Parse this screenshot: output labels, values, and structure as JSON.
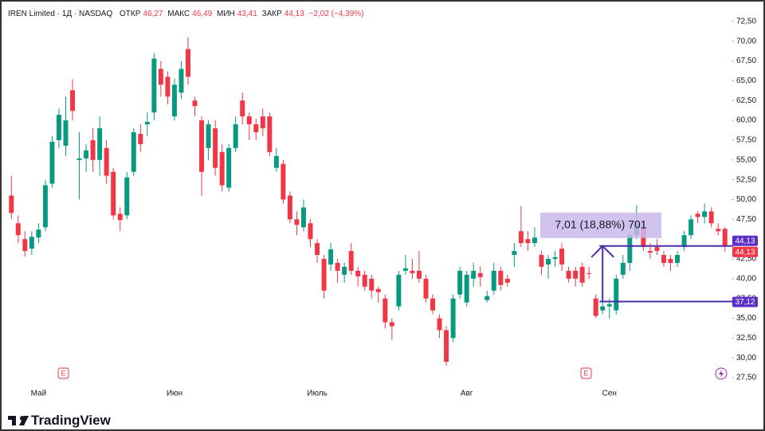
{
  "chart_data": {
    "type": "candlestick",
    "title": "IREN Limited · 1Д · NASDAQ",
    "header_stats": [
      {
        "label": "ОТКР",
        "value": "46,27"
      },
      {
        "label": "МАКС",
        "value": "46,49"
      },
      {
        "label": "МИН",
        "value": "43,41"
      },
      {
        "label": "ЗАКР",
        "value": "44,13"
      }
    ],
    "change": "−2,02 (−4,39%)",
    "up_color": "#089981",
    "down_color": "#f23645",
    "categories": [
      null,
      null,
      null,
      null,
      "Май",
      null,
      null,
      null,
      null,
      null,
      null,
      null,
      null,
      null,
      null,
      null,
      null,
      null,
      null,
      null,
      null,
      null,
      null,
      null,
      "Июн",
      null,
      null,
      null,
      null,
      null,
      null,
      null,
      null,
      null,
      null,
      null,
      null,
      null,
      null,
      null,
      null,
      null,
      null,
      null,
      null,
      "Июль",
      null,
      null,
      null,
      null,
      null,
      null,
      null,
      null,
      null,
      null,
      null,
      null,
      null,
      null,
      null,
      null,
      null,
      null,
      null,
      null,
      null,
      "Авг",
      null,
      null,
      null,
      null,
      null,
      null,
      null,
      null,
      null,
      null,
      null,
      null,
      null,
      null,
      null,
      null,
      null,
      null,
      null,
      null,
      "Сен",
      null,
      null,
      null,
      null,
      null,
      null,
      null,
      null,
      null,
      null,
      null,
      null,
      null,
      null,
      null,
      null,
      null
    ],
    "open": [
      50.5,
      47,
      45,
      43.8,
      45.2,
      46.5,
      52,
      57.5,
      56.8,
      63.8,
      55,
      55.2,
      57.5,
      55,
      56.5,
      53.5,
      48.2,
      48,
      53.5,
      58.3,
      59.5,
      61,
      66.5,
      65.5,
      60.5,
      63.5,
      69,
      62.5,
      60,
      56.5,
      59,
      56,
      51.5,
      56.5,
      62.5,
      60.5,
      59.5,
      60.5,
      60.5,
      54,
      54.5,
      50.5,
      47.5,
      46.5,
      47,
      44.5,
      42.5,
      41.8,
      42,
      40.5,
      43.5,
      41,
      40.5,
      40,
      38.7,
      37.5,
      34.5,
      36.5,
      41,
      41,
      41,
      40,
      37.5,
      35,
      33.5,
      32.5,
      38,
      37,
      40,
      40.7,
      37.3,
      38.5,
      41,
      40,
      43,
      46,
      45,
      44.5,
      43,
      41.8,
      42.5,
      43.8,
      41,
      41,
      41.5,
      40.7,
      37.5,
      36,
      36.5,
      36,
      40.5,
      42,
      45.5,
      46.5,
      43.5,
      44,
      43,
      42.5,
      42,
      44,
      45.5,
      48.2,
      47.8,
      48.5,
      46.3,
      46.3
    ],
    "high": [
      53,
      48,
      46,
      46,
      47,
      52.5,
      58,
      61.5,
      63,
      65.2,
      58.5,
      57,
      59,
      60.5,
      57.5,
      54,
      49,
      53.5,
      59,
      59.5,
      61,
      68.5,
      67.5,
      66.2,
      65.3,
      67.5,
      70.5,
      63,
      60.5,
      60,
      60,
      57,
      57,
      60.5,
      63.5,
      61,
      60.2,
      61.5,
      61,
      56.5,
      55,
      51,
      48.5,
      50,
      47.5,
      45,
      43,
      44.5,
      42.5,
      42,
      44.5,
      41.5,
      41,
      40.5,
      39,
      38,
      35,
      41,
      43,
      42.5,
      43.5,
      40.5,
      38,
      35.5,
      34,
      38,
      41.5,
      41,
      42,
      41.5,
      38.5,
      42,
      41.5,
      40.5,
      44.5,
      49.2,
      46,
      46.5,
      43.5,
      43,
      43.5,
      44.5,
      41.5,
      41.5,
      42,
      41.5,
      38,
      37,
      37.5,
      40.5,
      43,
      46,
      49.3,
      47,
      44.5,
      45,
      43.5,
      43,
      43.5,
      46,
      48,
      48.5,
      49.5,
      49,
      47,
      46.5
    ],
    "low": [
      47.5,
      44.5,
      42.8,
      43,
      44.5,
      46,
      51.5,
      56.5,
      55.5,
      60,
      50,
      53.5,
      53.5,
      53,
      52,
      47.5,
      46,
      47.5,
      53,
      56,
      58,
      60,
      63,
      62,
      60,
      62.7,
      64.5,
      60.5,
      50.5,
      55,
      53,
      51,
      51,
      56,
      59.5,
      57.5,
      57.5,
      58,
      55.5,
      53.5,
      49.5,
      47,
      45.5,
      46,
      44,
      42,
      37.5,
      41,
      39.5,
      39.5,
      40.5,
      39,
      38.5,
      37.5,
      37,
      33.7,
      32.3,
      36,
      40.5,
      40,
      39.5,
      37,
      35.5,
      32.5,
      29,
      32,
      37.5,
      36.5,
      39,
      39,
      37,
      38,
      38.5,
      39,
      41.5,
      44,
      43.5,
      44,
      40.5,
      40,
      41.5,
      41,
      39.5,
      39,
      39,
      40,
      35,
      35.5,
      35,
      35.5,
      40,
      41,
      45,
      43.5,
      42.5,
      43,
      41.5,
      41,
      41.5,
      43.5,
      45,
      47,
      47,
      46.5,
      45.5,
      43.41
    ],
    "close": [
      48.3,
      45.5,
      43.5,
      45.3,
      46.2,
      51.8,
      57.3,
      60.7,
      60,
      61.2,
      55.2,
      56.2,
      55,
      59,
      53,
      48,
      47.4,
      52.8,
      58.5,
      57,
      59.8,
      67.8,
      64.5,
      63,
      64.5,
      66.5,
      65.5,
      61.8,
      53.5,
      59.5,
      54,
      51.8,
      56.5,
      59.5,
      60.5,
      59.5,
      58.5,
      59,
      56,
      55.5,
      50,
      47.5,
      46.8,
      49,
      45,
      43,
      38.5,
      43.7,
      41,
      41.5,
      41,
      40.3,
      39,
      38.5,
      38.3,
      34.5,
      34,
      40.5,
      41.3,
      40.7,
      40,
      37.5,
      36,
      33.5,
      29.5,
      37.5,
      41,
      40.5,
      41,
      40.2,
      37.8,
      41,
      39.2,
      39.5,
      43.5,
      44.5,
      44.5,
      45.2,
      41.5,
      42.5,
      42.7,
      41.8,
      40,
      40,
      39.5,
      40.6,
      35.3,
      36.5,
      36.8,
      40,
      42,
      45.5,
      47,
      44,
      43.3,
      43.5,
      42,
      42,
      43,
      45.5,
      47.5,
      47.8,
      48.5,
      47,
      46,
      44.13
    ],
    "ylim": [
      26.5,
      74.7
    ],
    "yticks": [
      {
        "value": 72.5,
        "label": "72,50"
      },
      {
        "value": 70,
        "label": "70,00"
      },
      {
        "value": 67.5,
        "label": "67,50"
      },
      {
        "value": 65,
        "label": "65,00"
      },
      {
        "value": 62.5,
        "label": "62,50"
      },
      {
        "value": 60,
        "label": "60,00"
      },
      {
        "value": 57.5,
        "label": "57,50"
      },
      {
        "value": 55,
        "label": "55,00"
      },
      {
        "value": 52.5,
        "label": "52,50"
      },
      {
        "value": 50,
        "label": "50,00"
      },
      {
        "value": 47.5,
        "label": "47,50"
      },
      {
        "value": 42.5,
        "label": "42,50"
      },
      {
        "value": 40,
        "label": "40,00"
      },
      {
        "value": 37.5,
        "label": "37,50"
      },
      {
        "value": 35,
        "label": "35,00"
      },
      {
        "value": 32.5,
        "label": "32,50"
      },
      {
        "value": 30,
        "label": "30,00"
      },
      {
        "value": 27.5,
        "label": "27,50"
      }
    ],
    "measure": {
      "label": "7,01 (18,88%) 701",
      "color": "#4a2fa8"
    },
    "price_tags": [
      {
        "value": 44.13,
        "label": "44,13",
        "color": "#5b2ec7"
      },
      {
        "value": 44.13,
        "label": "44,13",
        "color": "#f23645"
      },
      {
        "value": 37.12,
        "label": "37,12",
        "color": "#5b2ec7"
      }
    ],
    "events": [
      "E",
      "E"
    ],
    "brand": "TradingView"
  }
}
